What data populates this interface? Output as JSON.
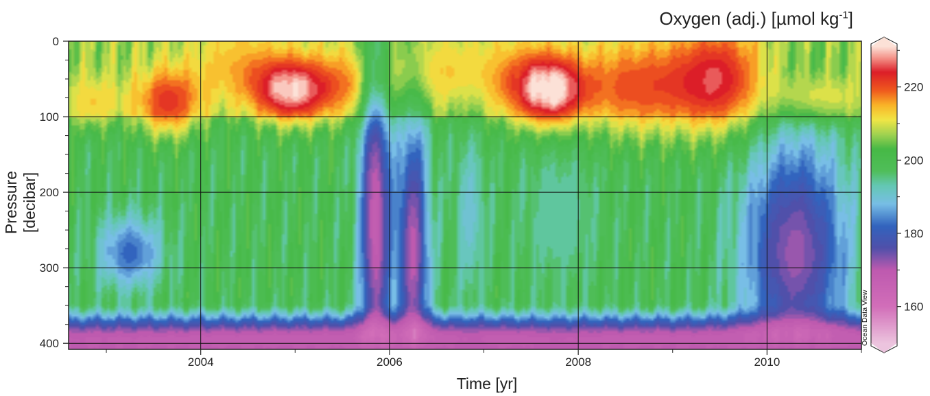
{
  "chart_data": {
    "type": "heatmap",
    "xlabel": "Time [yr]",
    "ylabel": "Pressure [decibar]",
    "colorbar_label": {
      "main": "Oxygen (adj.) [µmol kg",
      "sup": "-1",
      "end": "]"
    },
    "watermark": "Ocean Data View",
    "xlim": [
      2002.6,
      2011.0
    ],
    "ylim": [
      408,
      0
    ],
    "y_reversed": true,
    "xticks": [
      2004,
      2006,
      2008,
      2010
    ],
    "xtick_labels": [
      "2004",
      "2006",
      "2008",
      "2010"
    ],
    "yticks": [
      0,
      100,
      200,
      300,
      400
    ],
    "ytick_labels": [
      "0",
      "100",
      "200",
      "300",
      "400"
    ],
    "grid": true,
    "colorbar": {
      "range": [
        150,
        231
      ],
      "ticks": [
        160,
        180,
        200,
        220
      ],
      "tick_labels": [
        "160",
        "180",
        "200",
        "220"
      ]
    },
    "features": [
      {
        "kind": "oxygen-high",
        "x": 2002.85,
        "y": 80,
        "sx": 0.22,
        "sy": 25,
        "value": 213
      },
      {
        "kind": "oxygen-high",
        "x": 2003.65,
        "y": 80,
        "sx": 0.25,
        "sy": 32,
        "value": 222
      },
      {
        "kind": "oxygen-high",
        "x": 2004.4,
        "y": 30,
        "sx": 0.35,
        "sy": 40,
        "value": 214
      },
      {
        "kind": "oxygen-high",
        "x": 2004.95,
        "y": 65,
        "sx": 0.28,
        "sy": 30,
        "value": 228
      },
      {
        "kind": "oxygen-high",
        "x": 2005.6,
        "y": 55,
        "sx": 0.35,
        "sy": 35,
        "value": 216
      },
      {
        "kind": "oxygen-high",
        "x": 2006.55,
        "y": 40,
        "sx": 0.35,
        "sy": 35,
        "value": 213
      },
      {
        "kind": "oxygen-high",
        "x": 2007.35,
        "y": 50,
        "sx": 0.3,
        "sy": 40,
        "value": 215
      },
      {
        "kind": "oxygen-high",
        "x": 2007.72,
        "y": 65,
        "sx": 0.25,
        "sy": 32,
        "value": 229
      },
      {
        "kind": "oxygen-high",
        "x": 2008.6,
        "y": 60,
        "sx": 0.45,
        "sy": 45,
        "value": 220
      },
      {
        "kind": "oxygen-high",
        "x": 2009.5,
        "y": 50,
        "sx": 0.35,
        "sy": 50,
        "value": 224
      },
      {
        "kind": "oxygen-high",
        "x": 2010.55,
        "y": 75,
        "sx": 0.35,
        "sy": 22,
        "value": 214
      },
      {
        "kind": "oxygen-low",
        "x": 2003.25,
        "y": 280,
        "sx": 0.25,
        "sy": 35,
        "value": 182
      },
      {
        "kind": "oxygen-low",
        "x": 2005.85,
        "y": 240,
        "sx": 0.12,
        "sy": 160,
        "value": 168
      },
      {
        "kind": "oxygen-low",
        "x": 2006.25,
        "y": 280,
        "sx": 0.12,
        "sy": 130,
        "value": 170
      },
      {
        "kind": "oxygen-low",
        "x": 2006.85,
        "y": 230,
        "sx": 0.12,
        "sy": 80,
        "value": 190
      },
      {
        "kind": "oxygen-low",
        "x": 2007.8,
        "y": 230,
        "sx": 0.3,
        "sy": 70,
        "value": 193
      },
      {
        "kind": "oxygen-low",
        "x": 2010.3,
        "y": 280,
        "sx": 0.4,
        "sy": 110,
        "value": 172
      },
      {
        "kind": "oxygen-low-bottom",
        "x": 2006.5,
        "y": 395,
        "sx": 9,
        "sy": 18,
        "value": 168
      }
    ]
  }
}
